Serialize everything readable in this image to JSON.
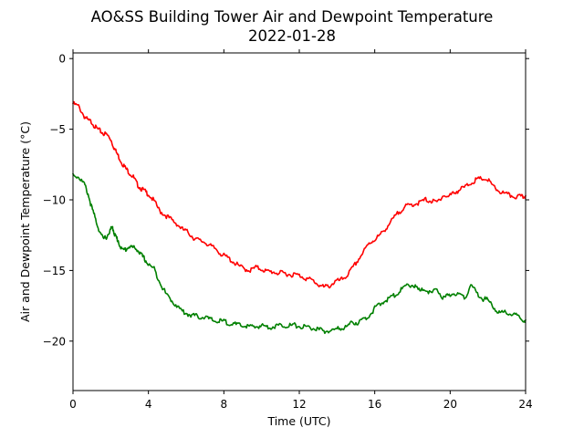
{
  "chart_data": {
    "type": "line",
    "title": "AO&SS Building Tower Air and Dewpoint Temperature",
    "subtitle": "2022-01-28",
    "xlabel": "Time (UTC)",
    "ylabel": "Air and Dewpoint Temperature (°C)",
    "xlim": [
      0,
      24
    ],
    "ylim": [
      -23.5,
      0.4
    ],
    "x_ticks": [
      0,
      4,
      8,
      12,
      16,
      20,
      24
    ],
    "x_tick_labels": [
      "0",
      "4",
      "8",
      "12",
      "16",
      "20",
      "24"
    ],
    "y_ticks": [
      0,
      -5,
      -10,
      -15,
      -20
    ],
    "y_tick_labels": [
      "0",
      "−5",
      "−10",
      "−15",
      "−20"
    ],
    "grid": false,
    "series": [
      {
        "color": "#ff0000",
        "x": [
          0,
          0.3,
          0.6,
          0.8,
          1.0,
          1.2,
          1.4,
          1.6,
          1.8,
          2.0,
          2.2,
          2.4,
          2.6,
          2.8,
          3.0,
          3.2,
          3.4,
          3.6,
          3.8,
          4.0,
          4.3,
          4.6,
          4.9,
          5.2,
          5.5,
          5.8,
          6.1,
          6.4,
          6.7,
          7.0,
          7.3,
          7.6,
          7.9,
          8.2,
          8.5,
          8.8,
          9.1,
          9.4,
          9.7,
          10.0,
          10.3,
          10.6,
          10.9,
          11.2,
          11.5,
          11.8,
          12.1,
          12.4,
          12.7,
          13.0,
          13.3,
          13.6,
          13.9,
          14.2,
          14.5,
          14.8,
          15.1,
          15.4,
          15.7,
          16.0,
          16.3,
          16.6,
          16.9,
          17.2,
          17.5,
          17.8,
          18.1,
          18.4,
          18.7,
          19.0,
          19.3,
          19.6,
          19.9,
          20.2,
          20.5,
          20.8,
          21.1,
          21.4,
          21.7,
          22.0,
          22.3,
          22.6,
          22.9,
          23.2,
          23.5,
          23.8,
          24.0
        ],
        "y": [
          -3.1,
          -3.3,
          -4.0,
          -4.3,
          -4.4,
          -4.8,
          -5.0,
          -5.2,
          -5.3,
          -5.6,
          -6.3,
          -6.8,
          -7.3,
          -7.7,
          -8.0,
          -8.3,
          -8.8,
          -9.1,
          -9.3,
          -9.5,
          -10.0,
          -10.7,
          -11.0,
          -11.3,
          -11.6,
          -12.0,
          -12.2,
          -12.6,
          -12.8,
          -12.9,
          -13.2,
          -13.4,
          -13.8,
          -14.0,
          -14.3,
          -14.6,
          -14.8,
          -14.9,
          -14.7,
          -14.8,
          -15.0,
          -15.0,
          -15.1,
          -15.1,
          -15.2,
          -15.2,
          -15.3,
          -15.5,
          -15.6,
          -15.9,
          -16.1,
          -16.0,
          -15.7,
          -15.6,
          -15.3,
          -14.8,
          -14.2,
          -13.6,
          -13.0,
          -12.7,
          -12.4,
          -11.9,
          -11.4,
          -10.9,
          -10.5,
          -10.3,
          -10.2,
          -10.1,
          -9.9,
          -10.0,
          -10.1,
          -9.6,
          -9.7,
          -9.4,
          -9.2,
          -9.0,
          -8.7,
          -8.5,
          -8.4,
          -8.5,
          -9.0,
          -9.3,
          -9.5,
          -9.6,
          -9.7,
          -9.7,
          -9.7
        ]
      },
      {
        "color": "#008000",
        "x": [
          0,
          0.3,
          0.6,
          0.8,
          1.0,
          1.2,
          1.4,
          1.6,
          1.8,
          2.0,
          2.1,
          2.2,
          2.3,
          2.4,
          2.6,
          2.8,
          3.0,
          3.2,
          3.4,
          3.6,
          3.8,
          4.0,
          4.3,
          4.6,
          4.9,
          5.2,
          5.5,
          5.8,
          6.1,
          6.4,
          6.7,
          7.0,
          7.3,
          7.6,
          7.9,
          8.2,
          8.5,
          8.8,
          9.1,
          9.4,
          9.7,
          10.0,
          10.3,
          10.6,
          10.9,
          11.2,
          11.5,
          11.8,
          12.1,
          12.4,
          12.7,
          13.0,
          13.3,
          13.6,
          13.9,
          14.2,
          14.5,
          14.8,
          15.1,
          15.4,
          15.7,
          16.0,
          16.3,
          16.6,
          16.9,
          17.2,
          17.5,
          17.8,
          18.1,
          18.4,
          18.7,
          19.0,
          19.3,
          19.6,
          19.9,
          20.2,
          20.5,
          20.8,
          21.1,
          21.4,
          21.7,
          22.0,
          22.3,
          22.6,
          22.9,
          23.2,
          23.5,
          23.8,
          24.0
        ],
        "y": [
          -8.1,
          -8.3,
          -8.8,
          -9.5,
          -10.5,
          -11.3,
          -12.1,
          -12.7,
          -12.5,
          -12.0,
          -11.9,
          -12.3,
          -12.6,
          -12.8,
          -13.5,
          -13.4,
          -13.2,
          -13.3,
          -13.4,
          -13.8,
          -14.1,
          -14.5,
          -14.8,
          -15.7,
          -16.5,
          -17.0,
          -17.4,
          -17.8,
          -18.0,
          -18.1,
          -18.2,
          -18.2,
          -18.4,
          -18.5,
          -18.5,
          -18.6,
          -18.7,
          -18.8,
          -18.8,
          -18.9,
          -18.9,
          -18.8,
          -18.9,
          -18.9,
          -18.8,
          -18.8,
          -18.8,
          -18.8,
          -18.9,
          -18.9,
          -19.0,
          -19.1,
          -19.2,
          -19.2,
          -19.1,
          -19.0,
          -18.9,
          -18.6,
          -18.6,
          -18.4,
          -18.1,
          -17.6,
          -17.3,
          -17.0,
          -16.8,
          -16.5,
          -16.2,
          -15.9,
          -16.0,
          -16.4,
          -16.2,
          -16.6,
          -16.2,
          -16.9,
          -16.7,
          -16.5,
          -16.6,
          -16.8,
          -15.9,
          -16.5,
          -16.9,
          -17.0,
          -17.5,
          -17.9,
          -17.9,
          -18.0,
          -18.1,
          -18.4,
          -18.5
        ]
      }
    ]
  }
}
